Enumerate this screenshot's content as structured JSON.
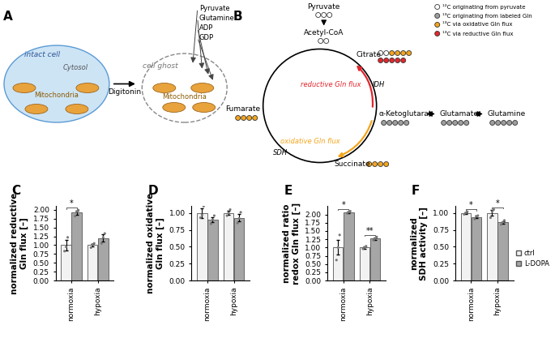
{
  "diagram_a": {
    "letter": "A",
    "intact_cell": "intact cell",
    "cytosol": "Cytosol",
    "mitochondria_left": "Mitochondria",
    "reagent": "Digitonin",
    "cell_ghost": "cell ghost",
    "mitochondria_right": "Mitochondria",
    "substrates": [
      "Pyruvate",
      "Glutamine",
      "ADP",
      "GDP"
    ]
  },
  "diagram_b": {
    "letter": "B",
    "nodes": {
      "pyruvate": "Pyruvate",
      "acetyl_coa": "Acetyl-CoA",
      "citrate": "Citrate",
      "akg": "α-Ketoglutarat",
      "glutamate": "Glutamate",
      "glutamine": "Glutamine",
      "succinate": "Succinate",
      "fumarate": "Fumarate"
    },
    "enzymes": {
      "idh": "IDH",
      "sdh": "SDH"
    },
    "fluxes": {
      "reductive": {
        "text": "reductive Gln flux",
        "color": "#e3262d"
      },
      "oxidative": {
        "text": "oxidative Gln flux",
        "color": "#f4a51c"
      }
    },
    "legend": [
      {
        "label": "¹²C originating from pyruvate",
        "color": "#ffffff"
      },
      {
        "label": "¹³C originating from labeled Gln",
        "color": "#9e9e9e"
      },
      {
        "label": "¹³C via oxidative Gln flux",
        "color": "#f4a51c"
      },
      {
        "label": "¹³C via reductive Gln flux",
        "color": "#e3262d"
      }
    ]
  },
  "chart_data": [
    {
      "type": "bar",
      "title": "C",
      "y_label": "normalized reductive\nGln flux [–]",
      "categories": [
        "normoxia",
        "hypoxia"
      ],
      "series": [
        {
          "name": "ctrl",
          "color": "#f2f2f2",
          "values": [
            1.0,
            1.0
          ],
          "errors": [
            0.14,
            0.04
          ],
          "points": [
            [
              0.83,
              0.95,
              1.22
            ],
            [
              0.93,
              1.02,
              1.05
            ]
          ]
        },
        {
          "name": "L-DOPA",
          "color": "#a6a6a6",
          "values": [
            1.92,
            1.2
          ],
          "errors": [
            0.06,
            0.1
          ],
          "points": [
            [
              1.82,
              1.95,
              1.99
            ],
            [
              1.05,
              1.22,
              1.33
            ]
          ]
        }
      ],
      "ylim": [
        0,
        2.1
      ],
      "yticks": [
        {
          "value": 0,
          "label": "0.00"
        },
        {
          "value": 0.25,
          "label": "0.25"
        },
        {
          "value": 0.5,
          "label": "0.50"
        },
        {
          "value": 0.75,
          "label": "0.75"
        },
        {
          "value": 1.0,
          "label": "1.00"
        },
        {
          "value": 1.25,
          "label": "1.25"
        },
        {
          "value": 1.5,
          "label": "1.50"
        },
        {
          "value": 1.75,
          "label": "1.75"
        },
        {
          "value": 2.0,
          "label": "2.00"
        }
      ],
      "annotations": [
        {
          "category": "normoxia",
          "text": "*"
        }
      ]
    },
    {
      "type": "bar",
      "title": "D",
      "y_label": "normalized oxidative\nGln flux [–]",
      "categories": [
        "normoxia",
        "hypoxia"
      ],
      "series": [
        {
          "name": "ctrl",
          "color": "#f2f2f2",
          "values": [
            1.0,
            1.0
          ],
          "errors": [
            0.07,
            0.03
          ],
          "points": [
            [
              0.93,
              0.97,
              1.1
            ],
            [
              0.96,
              1.0,
              1.05
            ]
          ]
        },
        {
          "name": "L-DOPA",
          "color": "#a6a6a6",
          "values": [
            0.9,
            0.93
          ],
          "errors": [
            0.04,
            0.05
          ],
          "points": [
            [
              0.84,
              0.9,
              0.96
            ],
            [
              0.85,
              0.92,
              1.01
            ]
          ]
        }
      ],
      "ylim": [
        0,
        1.1
      ],
      "yticks": [
        {
          "value": 0,
          "label": "0.00"
        },
        {
          "value": 0.25,
          "label": "0.25"
        },
        {
          "value": 0.5,
          "label": "0.50"
        },
        {
          "value": 0.75,
          "label": "0.75"
        },
        {
          "value": 1.0,
          "label": "1.00"
        }
      ]
    },
    {
      "type": "bar",
      "title": "E",
      "y_label": "normalized ratio\nredox Gln flux [–]",
      "categories": [
        "normoxia",
        "hypoxia"
      ],
      "series": [
        {
          "name": "ctrl",
          "color": "#f2f2f2",
          "values": [
            1.0,
            1.0
          ],
          "errors": [
            0.22,
            0.03
          ],
          "points": [
            [
              0.62,
              1.0,
              1.38
            ],
            [
              0.96,
              1.0,
              1.04
            ]
          ]
        },
        {
          "name": "L-DOPA",
          "color": "#a6a6a6",
          "values": [
            2.07,
            1.27
          ],
          "errors": [
            0.02,
            0.03
          ],
          "points": [
            [
              2.04,
              2.07,
              2.1
            ],
            [
              1.22,
              1.27,
              1.32
            ]
          ]
        }
      ],
      "ylim": [
        0,
        2.25
      ],
      "yticks": [
        {
          "value": 0,
          "label": "0.00"
        },
        {
          "value": 0.25,
          "label": "0.25"
        },
        {
          "value": 0.5,
          "label": "0.50"
        },
        {
          "value": 0.75,
          "label": "0.75"
        },
        {
          "value": 1.0,
          "label": "1.00"
        },
        {
          "value": 1.25,
          "label": "1.25"
        },
        {
          "value": 1.5,
          "label": "1.50"
        },
        {
          "value": 1.75,
          "label": "1.75"
        },
        {
          "value": 2.0,
          "label": "2.00"
        }
      ],
      "annotations": [
        {
          "category": "normoxia",
          "text": "*"
        },
        {
          "category": "hypoxia",
          "text": "**"
        }
      ]
    },
    {
      "type": "bar",
      "title": "F",
      "y_label": "normalized\nSDH activity [–]",
      "categories": [
        "normoxia",
        "hypoxia"
      ],
      "series": [
        {
          "name": "ctrl",
          "color": "#f2f2f2",
          "values": [
            1.0,
            1.0
          ],
          "errors": [
            0.01,
            0.04
          ],
          "points": [
            [
              0.98,
              1.0,
              1.02
            ],
            [
              0.93,
              1.02,
              1.05
            ]
          ]
        },
        {
          "name": "L-DOPA",
          "color": "#a6a6a6",
          "values": [
            0.94,
            0.86
          ],
          "errors": [
            0.015,
            0.02
          ],
          "points": [
            [
              0.91,
              0.95,
              0.96
            ],
            [
              0.83,
              0.86,
              0.89
            ]
          ]
        }
      ],
      "ylim": [
        0,
        1.1
      ],
      "yticks": [
        {
          "value": 0,
          "label": "0.00"
        },
        {
          "value": 0.25,
          "label": "0.25"
        },
        {
          "value": 0.5,
          "label": "0.50"
        },
        {
          "value": 0.75,
          "label": "0.75"
        },
        {
          "value": 1.0,
          "label": "1.00"
        }
      ],
      "annotations": [
        {
          "category": "normoxia",
          "text": "*"
        },
        {
          "category": "hypoxia",
          "text": "*"
        }
      ],
      "legend": "right"
    }
  ]
}
